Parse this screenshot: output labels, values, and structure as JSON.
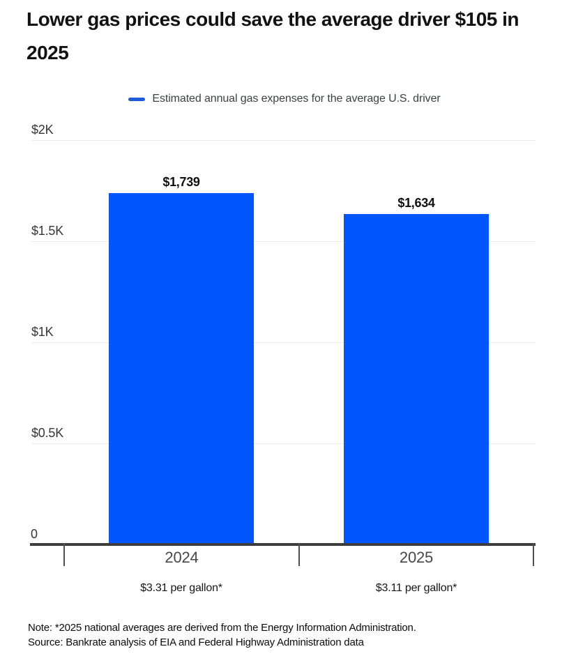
{
  "title": "Lower gas prices could save the average driver $105 in 2025",
  "legend": {
    "label": "Estimated annual gas expenses for the average U.S. driver",
    "color": "#1d5cd6"
  },
  "chart_data": {
    "type": "bar",
    "title": "Lower gas prices could save the average driver $105 in 2025",
    "series_name": "Estimated annual gas expenses for the average U.S. driver",
    "categories": [
      "2024",
      "2025"
    ],
    "values": [
      1739,
      1634
    ],
    "bar_labels": [
      "$1,739",
      "$1,634"
    ],
    "category_sublabels": [
      "$3.31 per gallon*",
      "$3.11 per gallon*"
    ],
    "bar_color": "#0256fe",
    "ylabel": "",
    "xlabel": "",
    "ylim": [
      0,
      2000
    ],
    "yticks": [
      {
        "label": "$2K",
        "value": 2000
      },
      {
        "label": "$1.5K",
        "value": 1500
      },
      {
        "label": "$1K",
        "value": 1000
      },
      {
        "label": "$0.5K",
        "value": 500
      },
      {
        "label": "0",
        "value": 0
      }
    ],
    "grid": true,
    "legend_position": "top"
  },
  "footer": {
    "note": "Note: *2025 national averages are derived from the Energy Information Administration.",
    "source": "Source: Bankrate analysis of EIA and Federal Highway Administration data"
  }
}
